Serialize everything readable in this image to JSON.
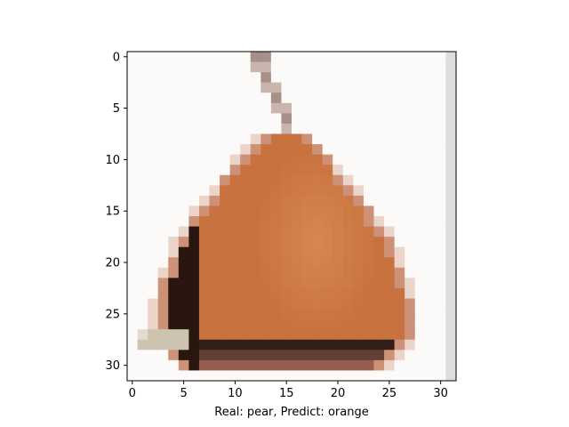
{
  "figure": {
    "xlabel": "Real: pear, Predict: orange",
    "x_ticks": [
      0,
      5,
      10,
      15,
      20,
      25,
      30
    ],
    "y_ticks": [
      0,
      5,
      10,
      15,
      20,
      25,
      30
    ],
    "image_size": 32
  },
  "image": {
    "subject": "pear",
    "colors": {
      "background": "#fbfaf8",
      "fruit_edge": "#b9643f",
      "fruit_body": "#c8733f",
      "fruit_highlight": "#d98c52",
      "fruit_shadow": "#a4563a",
      "bottom_shadow": "#8e5a4a",
      "stem_dark": "#a88f88",
      "stem_light": "#c9b5ae",
      "leaf_shadow": "#c8bea8",
      "right_strip": "#dddddd"
    }
  }
}
